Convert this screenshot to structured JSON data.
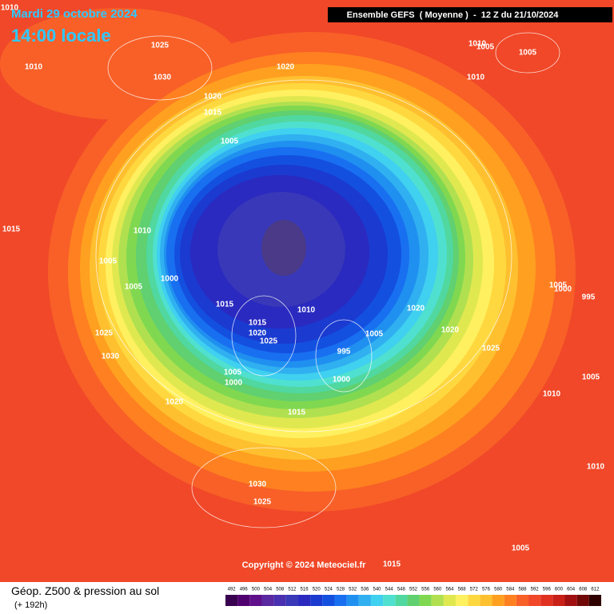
{
  "header": {
    "date": "Mardi 29 octobre 2024",
    "time": "14:00 locale",
    "model": "Ensemble GEFS  ( Moyenne )  -  12 Z du 21/10/2024"
  },
  "isobar_labels": [
    1010,
    1025,
    1030,
    1010,
    1020,
    1010,
    1005,
    1005,
    1010,
    1020,
    1015,
    1005,
    1010,
    1015,
    1005,
    1005,
    1000,
    1015,
    1015,
    1020,
    1025,
    1010,
    1020,
    1005,
    995,
    1000,
    1020,
    1025,
    1005,
    1000,
    995,
    1025,
    1030,
    1005,
    1000,
    1020,
    1015,
    1010,
    1005,
    1010,
    1030,
    1025,
    1015,
    1005
  ],
  "copyright": "Copyright © 2024 Meteociel.fr",
  "footer": {
    "title": "Géop. Z500 & pression au sol",
    "lead": "(+ 192h)"
  },
  "legend": {
    "values": [
      492,
      496,
      500,
      504,
      508,
      512,
      516,
      520,
      524,
      528,
      532,
      536,
      540,
      544,
      548,
      552,
      556,
      560,
      564,
      568,
      572,
      576,
      580,
      584,
      588,
      592,
      596,
      600,
      604,
      608,
      612
    ],
    "colors": [
      "#3a0050",
      "#50006e",
      "#60108a",
      "#5a28a0",
      "#4830b0",
      "#3838b8",
      "#2a2ac0",
      "#1a3ad0",
      "#1450e0",
      "#1870f0",
      "#2090f0",
      "#30b0f0",
      "#40d0f0",
      "#50e0d0",
      "#50d8a0",
      "#60d070",
      "#80d850",
      "#b0e050",
      "#e0e850",
      "#fff060",
      "#ffd840",
      "#ffc030",
      "#ffa020",
      "#ff8020",
      "#f86028",
      "#f04828",
      "#e03020",
      "#c82018",
      "#a01010",
      "#700808",
      "#300000"
    ]
  }
}
